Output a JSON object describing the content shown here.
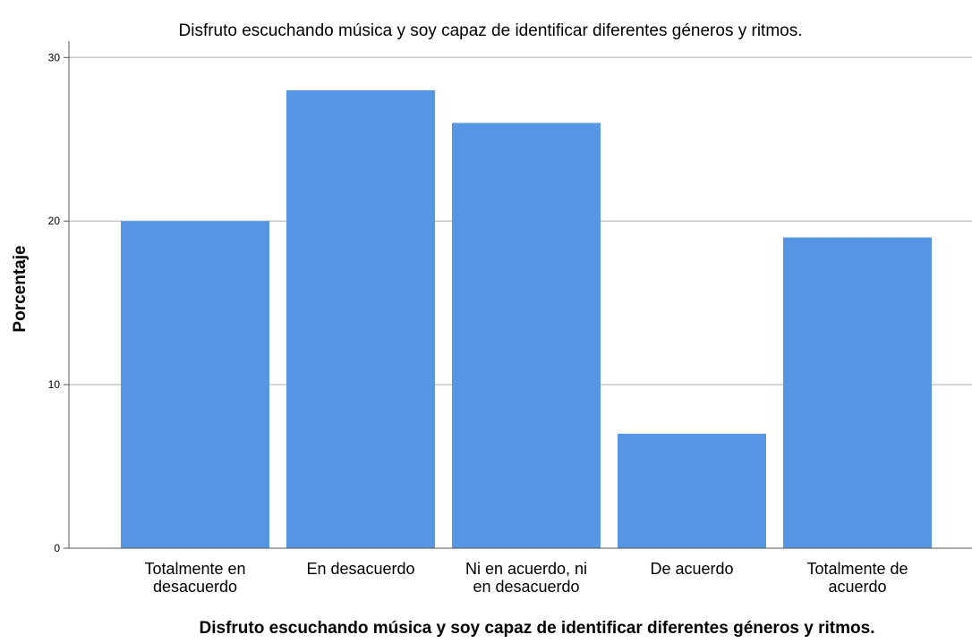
{
  "chart_data": {
    "type": "bar",
    "title": "Disfruto escuchando música y soy capaz de identificar diferentes géneros y ritmos.",
    "xlabel": "Disfruto escuchando música y soy capaz de identificar diferentes géneros y ritmos.",
    "ylabel": "Porcentaje",
    "categories": [
      [
        "Totalmente en",
        "desacuerdo"
      ],
      [
        "En desacuerdo"
      ],
      [
        "Ni en acuerdo, ni",
        "en desacuerdo"
      ],
      [
        "De acuerdo"
      ],
      [
        "Totalmente de",
        "acuerdo"
      ]
    ],
    "values": [
      20,
      28,
      26,
      7,
      19
    ],
    "ylim": [
      0,
      31
    ],
    "yticks": [
      "0",
      "10",
      "20",
      "30"
    ],
    "grid": true,
    "bar_color": "#5696e4",
    "grid_color": "#c8c8c8",
    "axis_color": "#555555"
  }
}
